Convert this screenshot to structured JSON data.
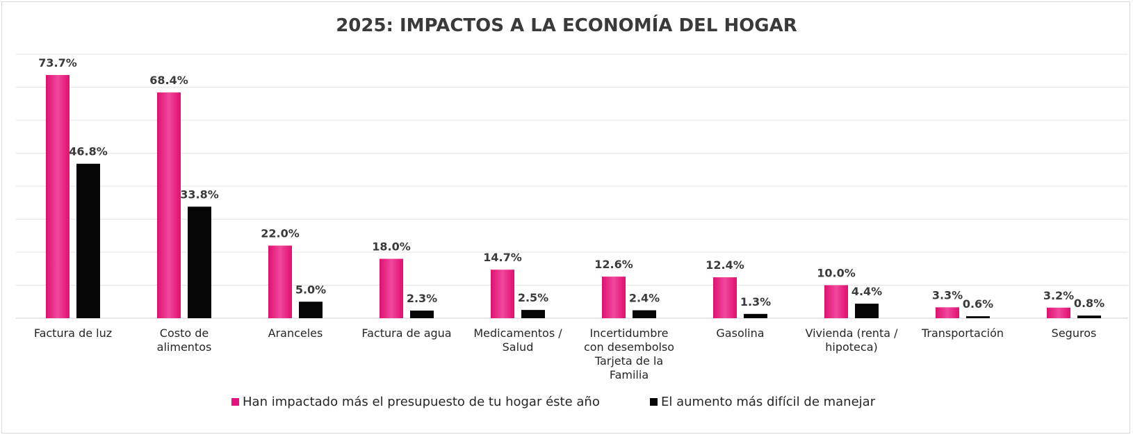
{
  "chart_data": {
    "type": "bar",
    "title": "2025: IMPACTOS A LA ECONOMÍA DEL HOGAR",
    "xlabel": "",
    "ylabel": "",
    "ylim": [
      0,
      80
    ],
    "grid": true,
    "legend": "bottom",
    "categories": [
      [
        "Factura de luz"
      ],
      [
        "Costo de",
        "alimentos"
      ],
      [
        "Aranceles"
      ],
      [
        "Factura de agua"
      ],
      [
        "Medicamentos /",
        "Salud"
      ],
      [
        "Incertidumbre",
        "con desembolso",
        "Tarjeta de la",
        "Familia"
      ],
      [
        "Gasolina"
      ],
      [
        "Vivienda (renta /",
        "hipoteca)"
      ],
      [
        "Transportación"
      ],
      [
        "Seguros"
      ]
    ],
    "series": [
      {
        "name": "Han impactado más el presupuesto de tu hogar éste año",
        "color": "#e8127c",
        "values": [
          73.7,
          68.4,
          22.0,
          18.0,
          14.7,
          12.6,
          12.4,
          10.0,
          3.3,
          3.2
        ],
        "labels": [
          "73.7%",
          "68.4%",
          "22.0%",
          "18.0%",
          "14.7%",
          "12.6%",
          "12.4%",
          "10.0%",
          "3.3%",
          "3.2%"
        ]
      },
      {
        "name": "El aumento más difícil de manejar",
        "color": "#050505",
        "values": [
          46.8,
          33.8,
          5.0,
          2.3,
          2.5,
          2.4,
          1.3,
          4.4,
          0.6,
          0.8
        ],
        "labels": [
          "46.8%",
          "33.8%",
          "5.0%",
          "2.3%",
          "2.5%",
          "2.4%",
          "1.3%",
          "4.4%",
          "0.6%",
          "0.8%"
        ]
      }
    ]
  }
}
